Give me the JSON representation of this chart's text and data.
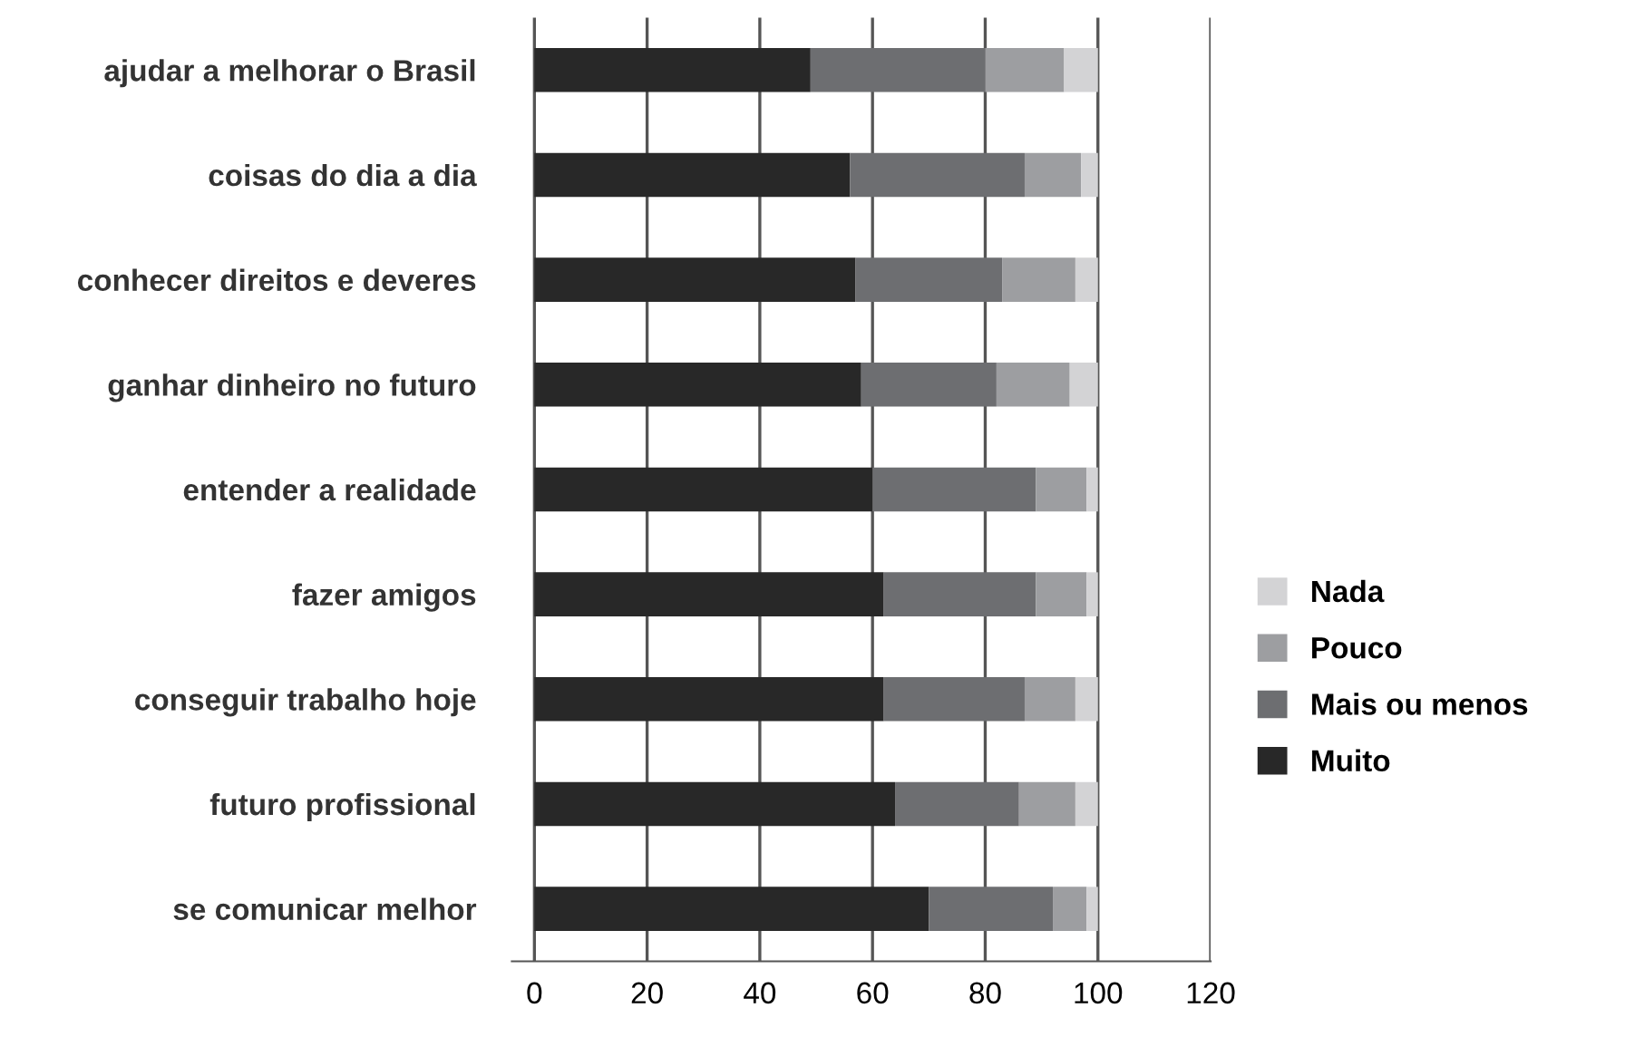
{
  "chart_data": {
    "type": "bar",
    "orientation": "horizontal",
    "stacked": true,
    "categories": [
      "ajudar a melhorar o Brasil",
      "coisas do dia a dia",
      "conhecer direitos e deveres",
      "ganhar dinheiro no futuro",
      "entender a realidade",
      "fazer amigos",
      "conseguir trabalho hoje",
      "futuro profissional",
      "se comunicar melhor"
    ],
    "series": [
      {
        "name": "Muito",
        "color": "#282828",
        "values": [
          49,
          56,
          57,
          58,
          60,
          62,
          62,
          64,
          70
        ]
      },
      {
        "name": "Mais ou menos",
        "color": "#6d6e71",
        "values": [
          31,
          31,
          26,
          24,
          29,
          27,
          25,
          22,
          22
        ]
      },
      {
        "name": "Pouco",
        "color": "#9d9ea1",
        "values": [
          14,
          10,
          13,
          13,
          9,
          9,
          9,
          10,
          6
        ]
      },
      {
        "name": "Nada",
        "color": "#d3d3d5",
        "values": [
          6,
          3,
          4,
          5,
          2,
          2,
          4,
          4,
          2
        ]
      }
    ],
    "xlim": [
      -4,
      120
    ],
    "xticks": [
      0,
      20,
      40,
      60,
      80,
      100,
      120
    ],
    "grid": "x",
    "legend": "right"
  }
}
